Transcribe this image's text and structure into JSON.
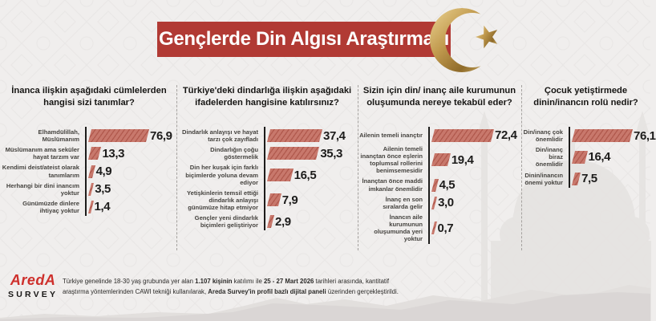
{
  "title": "Gençlerde Din Algısı Araştırması",
  "colors": {
    "banner_red": "#b13a34",
    "bar_fill": "#c8786c",
    "bar_hatch": "#b15a4e",
    "gold_accent": "#c19a4e",
    "text_dark": "#1d1c1b",
    "logo_red": "#ce2f2b",
    "background": "#f0eeed"
  },
  "icons": {
    "header_icon": "crescent-and-star-icon"
  },
  "chart_data": [
    {
      "type": "bar",
      "orientation": "horizontal",
      "title": "İnanca ilişkin aşağıdaki cümlelerden hangisi sizi tanımlar?",
      "categories": [
        "Elhamdülillah, Müslümanım",
        "Müslümanım ama seküler hayat tarzım var",
        "Kendimi deist/ateist olarak tanımlarım",
        "Herhangi bir dini inancım yoktur",
        "Günümüzde dinlere ihtiyaç yoktur"
      ],
      "values": [
        76.9,
        13.3,
        4.9,
        3.5,
        1.4
      ],
      "value_labels": [
        "76,9",
        "13,3",
        "4,9",
        "3,5",
        "1,4"
      ],
      "xlim": [
        0,
        76.9
      ]
    },
    {
      "type": "bar",
      "orientation": "horizontal",
      "title": "Türkiye'deki dindarlığa ilişkin aşağıdaki ifadelerden hangisine katılırsınız?",
      "categories": [
        "Dindarlık anlayışı ve hayat tarzı çok zayıfladı",
        "Dindarlığın çoğu göstermelik",
        "Din her kuşak için farklı biçimlerde yoluna devam ediyor",
        "Yetişkinlerin temsil ettiği dindarlık anlayışı günümüze hitap etmiyor",
        "Gençler yeni dindarlık biçimleri geliştiriyor"
      ],
      "values": [
        37.4,
        35.3,
        16.5,
        7.9,
        2.9
      ],
      "value_labels": [
        "37,4",
        "35,3",
        "16,5",
        "7,9",
        "2,9"
      ],
      "xlim": [
        0,
        37.4
      ]
    },
    {
      "type": "bar",
      "orientation": "horizontal",
      "title": "Sizin için din/ inanç aile kurumunun oluşumunda nereye tekabül eder?",
      "categories": [
        "Ailenin temeli inançtır",
        "Ailenin temeli inançtan önce eşlerin toplumsal rollerini benimsemesidir",
        "İnançtan önce maddi imkanlar önemlidir",
        "İnanç en son sıralarda gelir",
        "İnancın aile kurumunun oluşumunda yeri yoktur"
      ],
      "values": [
        72.4,
        19.4,
        4.5,
        3.0,
        0.7
      ],
      "value_labels": [
        "72,4",
        "19,4",
        "4,5",
        "3,0",
        "0,7"
      ],
      "xlim": [
        0,
        72.4
      ]
    },
    {
      "type": "bar",
      "orientation": "horizontal",
      "title": "Çocuk yetiştirmede dinin/inancın rolü nedir?",
      "categories": [
        "Din/inanç çok önemlidir",
        "Din/inanç biraz önemlidir",
        "Dinin/inancın önemi yoktur"
      ],
      "values": [
        76.1,
        16.4,
        7.5
      ],
      "value_labels": [
        "76,1",
        "16,4",
        "7,5"
      ],
      "xlim": [
        0,
        76.1
      ]
    }
  ],
  "footer": {
    "logo_brand": "AredA",
    "logo_sub": "SURVEY",
    "note_parts": [
      {
        "text": "Türkiye genelinde 18-30 yaş grubunda yer alan ",
        "bold": false
      },
      {
        "text": "1.107 kişinin",
        "bold": true
      },
      {
        "text": " katılımı ile ",
        "bold": false
      },
      {
        "text": "25 - 27 Mart 2026",
        "bold": true
      },
      {
        "text": " tarihleri arasında, kantitatif araştırma yöntemlerinden CAWI tekniği kullanılarak, ",
        "bold": false
      },
      {
        "text": "Areda Survey'in profil bazlı dijital paneli",
        "bold": true
      },
      {
        "text": " üzerinden gerçekleştirildi.",
        "bold": false
      }
    ]
  }
}
